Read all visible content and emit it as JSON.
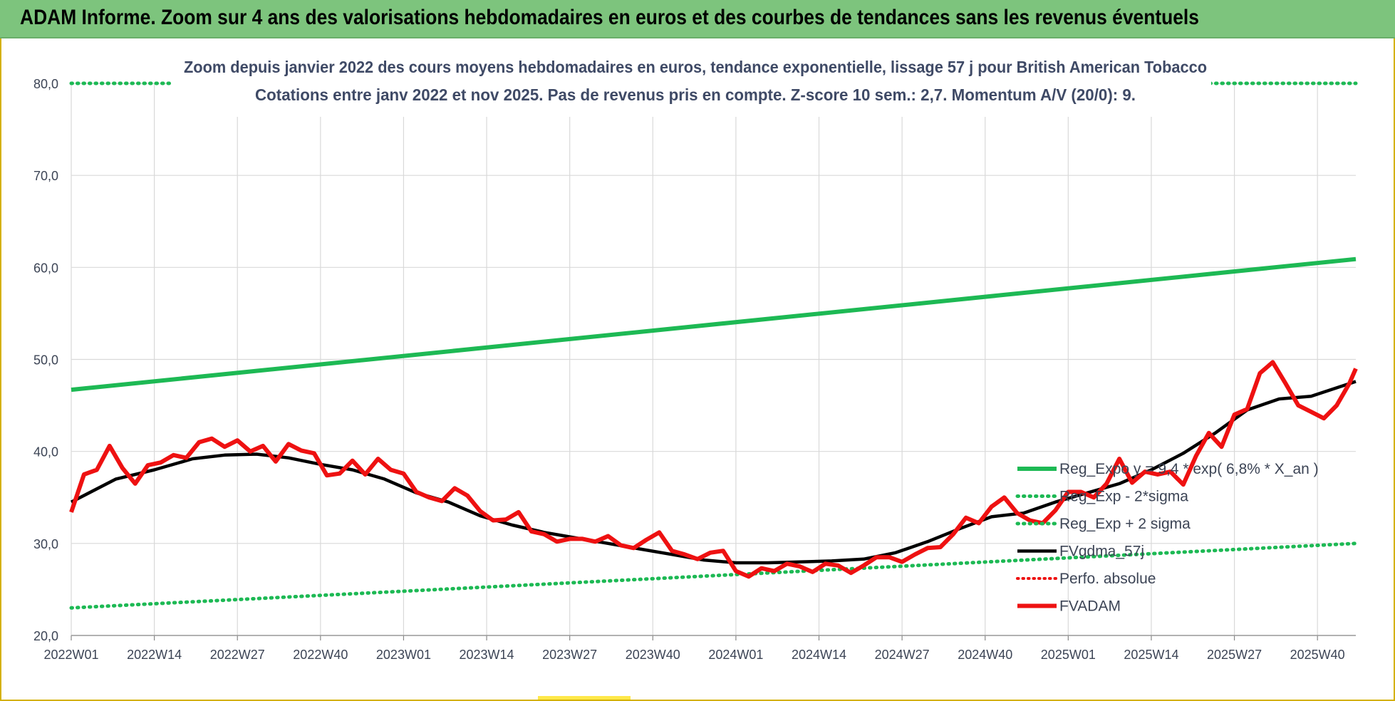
{
  "header": {
    "title": "ADAM Informe. Zoom sur 4 ans des valorisations hebdomadaires en euros et des courbes de tendances sans les revenus éventuels"
  },
  "colors": {
    "header_bg": "#7dc47d",
    "green": "#1db954",
    "red": "#ee1111",
    "black": "#000000",
    "grid": "#d9d9d9"
  },
  "chart_data": {
    "type": "line",
    "title": "Zoom depuis janvier 2022 des cours moyens hebdomadaires en euros, tendance exponentielle, lissage 57 j pour British American Tobacco",
    "subtitle": "Cotations entre janv 2022 et nov 2025. Pas de revenus pris en compte. Z-score 10 sem.: 2,7. Momentum A/V (20/0): 9.",
    "xlabel": "",
    "ylabel": "",
    "ylim": [
      20,
      80
    ],
    "yticks": [
      20,
      30,
      40,
      50,
      60,
      70,
      80
    ],
    "ytick_labels": [
      "20,0",
      "30,0",
      "40,0",
      "50,0",
      "60,0",
      "70,0",
      "80,0"
    ],
    "xlim": [
      1,
      202
    ],
    "xticks": [
      1,
      14,
      27,
      40,
      53,
      66,
      79,
      92,
      105,
      118,
      131,
      144,
      157,
      170,
      183,
      196
    ],
    "xtick_labels": [
      "2022W01",
      "2022W14",
      "2022W27",
      "2022W40",
      "2023W01",
      "2023W14",
      "2023W27",
      "2023W40",
      "2024W01",
      "2024W14",
      "2024W27",
      "2024W40",
      "2025W01",
      "2025W14",
      "2025W27",
      "2025W40"
    ],
    "grid": true,
    "legend_position": "lower-right",
    "series": [
      {
        "name": "Reg_Expo  y = 9,4 * exp( 6,8% *  X_an )",
        "style": "solid-green",
        "x": [
          1,
          202
        ],
        "values": [
          46.7,
          60.9
        ]
      },
      {
        "name": "Reg_Exp - 2*sigma",
        "style": "dotted-green",
        "x": [
          1,
          202
        ],
        "values": [
          23.0,
          30.0
        ]
      },
      {
        "name": "Reg_Exp + 2 sigma",
        "style": "dotted-green",
        "x": [
          1,
          202
        ],
        "values": [
          80.0,
          80.0
        ]
      },
      {
        "name": "FVgdma_57j",
        "style": "solid-black",
        "x": [
          1,
          8,
          14,
          20,
          25,
          30,
          35,
          40,
          45,
          50,
          55,
          60,
          65,
          70,
          75,
          80,
          85,
          90,
          95,
          100,
          105,
          110,
          115,
          120,
          125,
          130,
          135,
          140,
          145,
          150,
          155,
          160,
          165,
          170,
          175,
          180,
          185,
          190,
          195,
          202
        ],
        "values": [
          34.5,
          37.0,
          38.0,
          39.2,
          39.6,
          39.7,
          39.3,
          38.6,
          38.0,
          37.0,
          35.5,
          34.5,
          33.0,
          32.0,
          31.2,
          30.6,
          30.0,
          29.4,
          28.8,
          28.2,
          27.9,
          27.9,
          28.0,
          28.1,
          28.3,
          29.0,
          30.2,
          31.6,
          32.9,
          33.3,
          34.5,
          35.5,
          36.5,
          38.0,
          39.8,
          42.0,
          44.5,
          45.7,
          46.0,
          47.6
        ]
      },
      {
        "name": "Perfo. absolue",
        "style": "dotted-red",
        "x": [],
        "values": []
      },
      {
        "name": "FVADAM",
        "style": "solid-red",
        "x": [
          1,
          3,
          5,
          7,
          9,
          11,
          13,
          15,
          17,
          19,
          21,
          23,
          25,
          27,
          29,
          31,
          33,
          35,
          37,
          39,
          41,
          43,
          45,
          47,
          49,
          51,
          53,
          55,
          57,
          59,
          61,
          63,
          65,
          67,
          69,
          71,
          73,
          75,
          77,
          79,
          81,
          83,
          85,
          87,
          89,
          91,
          93,
          95,
          97,
          99,
          101,
          103,
          105,
          107,
          109,
          111,
          113,
          115,
          117,
          119,
          121,
          123,
          125,
          127,
          129,
          131,
          133,
          135,
          137,
          139,
          141,
          143,
          145,
          147,
          149,
          151,
          153,
          155,
          157,
          159,
          161,
          163,
          165,
          167,
          169,
          171,
          173,
          175,
          177,
          179,
          181,
          183,
          185,
          187,
          189,
          191,
          193,
          195,
          197,
          199,
          201,
          202
        ],
        "values": [
          33.4,
          37.5,
          38.0,
          40.6,
          38.2,
          36.5,
          38.5,
          38.8,
          39.6,
          39.3,
          41.0,
          41.4,
          40.5,
          41.2,
          40.0,
          40.6,
          38.9,
          40.8,
          40.1,
          39.8,
          37.4,
          37.6,
          39.0,
          37.5,
          39.2,
          38.0,
          37.6,
          35.6,
          35.0,
          34.6,
          36.0,
          35.2,
          33.5,
          32.5,
          32.6,
          33.4,
          31.3,
          31.0,
          30.2,
          30.5,
          30.5,
          30.2,
          30.8,
          29.8,
          29.5,
          30.4,
          31.2,
          29.2,
          28.8,
          28.3,
          29.0,
          29.2,
          27.0,
          26.4,
          27.3,
          27.0,
          27.8,
          27.5,
          26.9,
          27.8,
          27.6,
          26.8,
          27.6,
          28.5,
          28.5,
          28.0,
          28.8,
          29.5,
          29.6,
          31.0,
          32.8,
          32.2,
          34.0,
          35.0,
          33.3,
          32.5,
          32.2,
          33.6,
          35.6,
          35.6,
          35.0,
          36.5,
          39.2,
          36.6,
          37.8,
          37.5,
          37.8,
          36.4,
          39.5,
          42.0,
          40.5,
          44.0,
          44.6,
          48.5,
          49.7,
          47.4,
          45.0,
          44.3,
          43.6,
          45.0,
          47.4,
          49.0
        ]
      }
    ]
  }
}
